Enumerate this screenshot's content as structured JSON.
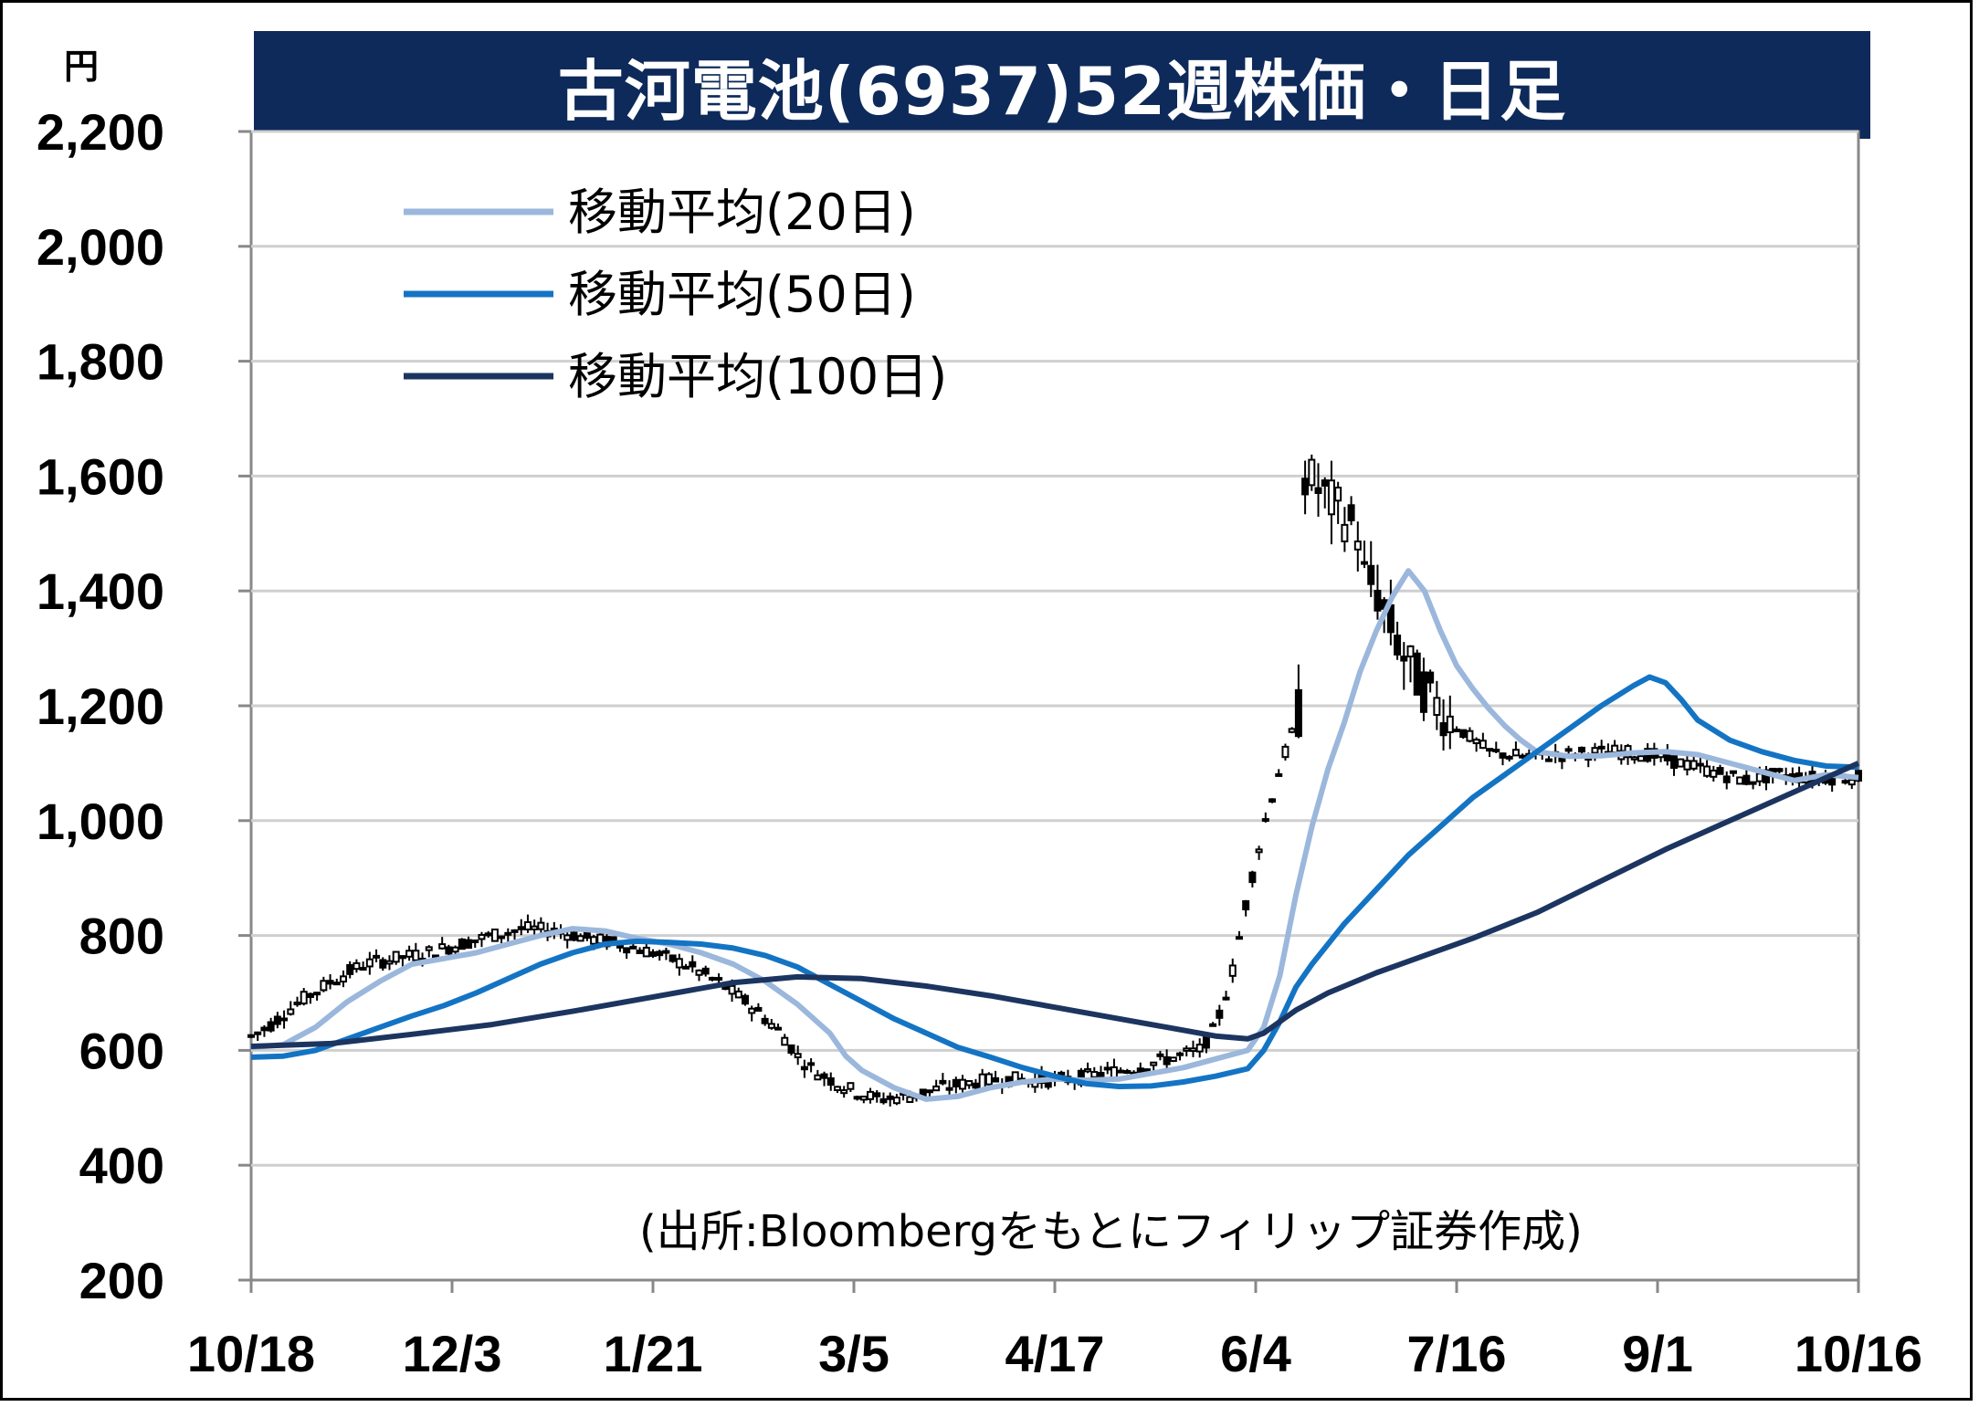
{
  "chart_data": {
    "type": "line",
    "title": "古河電池(6937)52週株価・日足",
    "unit_label": "円",
    "source": "(出所:Bloombergをもとにフィリップ証券作成)",
    "ylim": [
      200,
      2200
    ],
    "y_ticks": [
      "2,200",
      "2,000",
      "1,800",
      "1,600",
      "1,400",
      "1,200",
      "1,000",
      "800",
      "600",
      "400",
      "200"
    ],
    "y_tick_values": [
      2200,
      2000,
      1800,
      1600,
      1400,
      1200,
      1000,
      800,
      600,
      400,
      200
    ],
    "x_ticks": [
      "10/18",
      "12/3",
      "1/21",
      "3/5",
      "4/17",
      "6/4",
      "7/16",
      "9/1",
      "10/16"
    ],
    "grid": true,
    "legend_position": "top-left",
    "series": [
      {
        "name": "移動平均(20日)",
        "color": "#9bb7dc",
        "points": [
          [
            0,
            605
          ],
          [
            0.02,
            610
          ],
          [
            0.04,
            640
          ],
          [
            0.06,
            685
          ],
          [
            0.08,
            720
          ],
          [
            0.1,
            750
          ],
          [
            0.12,
            760
          ],
          [
            0.14,
            770
          ],
          [
            0.16,
            785
          ],
          [
            0.18,
            800
          ],
          [
            0.2,
            812
          ],
          [
            0.22,
            808
          ],
          [
            0.24,
            795
          ],
          [
            0.26,
            785
          ],
          [
            0.28,
            770
          ],
          [
            0.3,
            750
          ],
          [
            0.32,
            720
          ],
          [
            0.34,
            680
          ],
          [
            0.36,
            630
          ],
          [
            0.37,
            590
          ],
          [
            0.38,
            565
          ],
          [
            0.4,
            535
          ],
          [
            0.42,
            515
          ],
          [
            0.44,
            520
          ],
          [
            0.46,
            535
          ],
          [
            0.48,
            545
          ],
          [
            0.5,
            550
          ],
          [
            0.52,
            548
          ],
          [
            0.54,
            550
          ],
          [
            0.56,
            560
          ],
          [
            0.58,
            570
          ],
          [
            0.6,
            585
          ],
          [
            0.62,
            600
          ],
          [
            0.63,
            640
          ],
          [
            0.64,
            730
          ],
          [
            0.65,
            870
          ],
          [
            0.66,
            990
          ],
          [
            0.67,
            1090
          ],
          [
            0.68,
            1170
          ],
          [
            0.69,
            1260
          ],
          [
            0.7,
            1330
          ],
          [
            0.71,
            1390
          ],
          [
            0.72,
            1435
          ],
          [
            0.73,
            1400
          ],
          [
            0.74,
            1330
          ],
          [
            0.75,
            1270
          ],
          [
            0.76,
            1230
          ],
          [
            0.77,
            1195
          ],
          [
            0.78,
            1165
          ],
          [
            0.79,
            1140
          ],
          [
            0.8,
            1120
          ],
          [
            0.82,
            1112
          ],
          [
            0.84,
            1113
          ],
          [
            0.86,
            1118
          ],
          [
            0.88,
            1120
          ],
          [
            0.9,
            1115
          ],
          [
            0.92,
            1100
          ],
          [
            0.94,
            1085
          ],
          [
            0.96,
            1070
          ],
          [
            0.98,
            1080
          ],
          [
            1,
            1075
          ]
        ]
      },
      {
        "name": "移動平均(50日)",
        "color": "#1474c4",
        "points": [
          [
            0,
            588
          ],
          [
            0.02,
            590
          ],
          [
            0.04,
            600
          ],
          [
            0.06,
            620
          ],
          [
            0.08,
            640
          ],
          [
            0.1,
            660
          ],
          [
            0.12,
            678
          ],
          [
            0.14,
            700
          ],
          [
            0.16,
            725
          ],
          [
            0.18,
            750
          ],
          [
            0.2,
            770
          ],
          [
            0.22,
            785
          ],
          [
            0.24,
            790
          ],
          [
            0.26,
            788
          ],
          [
            0.28,
            785
          ],
          [
            0.3,
            778
          ],
          [
            0.32,
            765
          ],
          [
            0.34,
            745
          ],
          [
            0.36,
            715
          ],
          [
            0.38,
            685
          ],
          [
            0.4,
            655
          ],
          [
            0.42,
            630
          ],
          [
            0.44,
            605
          ],
          [
            0.46,
            588
          ],
          [
            0.48,
            570
          ],
          [
            0.5,
            555
          ],
          [
            0.52,
            542
          ],
          [
            0.54,
            537
          ],
          [
            0.56,
            538
          ],
          [
            0.58,
            545
          ],
          [
            0.6,
            555
          ],
          [
            0.62,
            568
          ],
          [
            0.63,
            600
          ],
          [
            0.64,
            650
          ],
          [
            0.65,
            710
          ],
          [
            0.66,
            750
          ],
          [
            0.68,
            820
          ],
          [
            0.7,
            880
          ],
          [
            0.72,
            940
          ],
          [
            0.74,
            990
          ],
          [
            0.76,
            1040
          ],
          [
            0.78,
            1080
          ],
          [
            0.8,
            1120
          ],
          [
            0.82,
            1160
          ],
          [
            0.84,
            1200
          ],
          [
            0.86,
            1235
          ],
          [
            0.87,
            1250
          ],
          [
            0.88,
            1240
          ],
          [
            0.89,
            1210
          ],
          [
            0.9,
            1175
          ],
          [
            0.92,
            1140
          ],
          [
            0.94,
            1120
          ],
          [
            0.96,
            1105
          ],
          [
            0.98,
            1095
          ],
          [
            1,
            1093
          ]
        ]
      },
      {
        "name": "移動平均(100日)",
        "color": "#1c3560",
        "points": [
          [
            0,
            607
          ],
          [
            0.05,
            612
          ],
          [
            0.1,
            628
          ],
          [
            0.15,
            645
          ],
          [
            0.2,
            668
          ],
          [
            0.25,
            693
          ],
          [
            0.3,
            718
          ],
          [
            0.34,
            728
          ],
          [
            0.38,
            725
          ],
          [
            0.42,
            712
          ],
          [
            0.46,
            695
          ],
          [
            0.5,
            675
          ],
          [
            0.54,
            655
          ],
          [
            0.57,
            640
          ],
          [
            0.6,
            625
          ],
          [
            0.62,
            620
          ],
          [
            0.63,
            630
          ],
          [
            0.65,
            670
          ],
          [
            0.67,
            700
          ],
          [
            0.7,
            735
          ],
          [
            0.73,
            765
          ],
          [
            0.76,
            795
          ],
          [
            0.8,
            840
          ],
          [
            0.84,
            895
          ],
          [
            0.88,
            950
          ],
          [
            0.92,
            1000
          ],
          [
            0.96,
            1050
          ],
          [
            1,
            1100
          ]
        ]
      }
    ]
  }
}
